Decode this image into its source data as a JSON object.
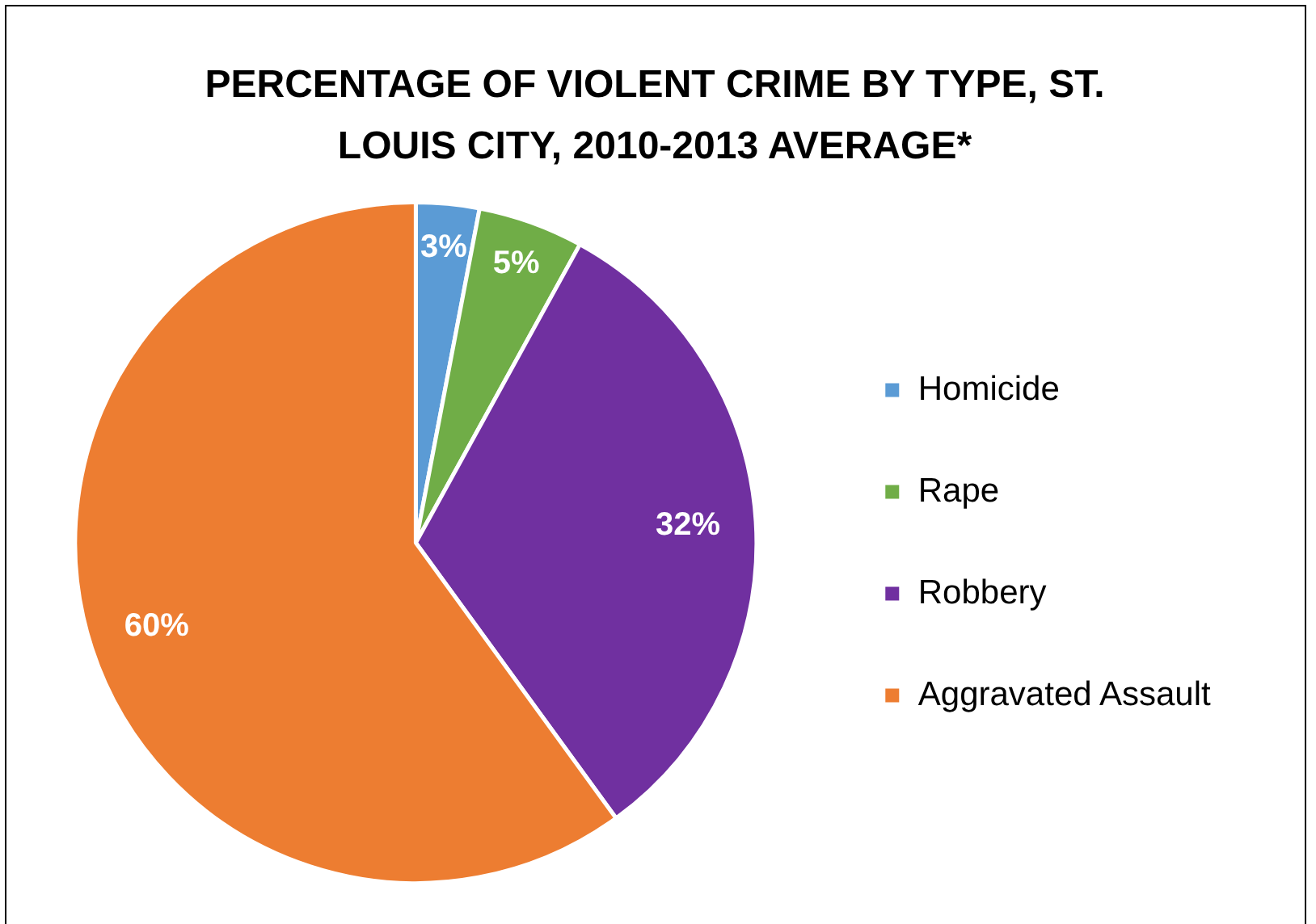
{
  "chart_data": {
    "type": "pie",
    "title": "PERCENTAGE OF VIOLENT CRIME BY TYPE, ST. LOUIS CITY, 2010-2013 AVERAGE*",
    "categories": [
      "Homicide",
      "Rape",
      "Robbery",
      "Aggravated Assault"
    ],
    "values": [
      3,
      5,
      32,
      60
    ],
    "colors": [
      "#5b9bd5",
      "#70ad47",
      "#7030a0",
      "#ed7d31"
    ],
    "value_labels": [
      "3%",
      "5%",
      "32%",
      "60%"
    ],
    "legend": "right"
  }
}
